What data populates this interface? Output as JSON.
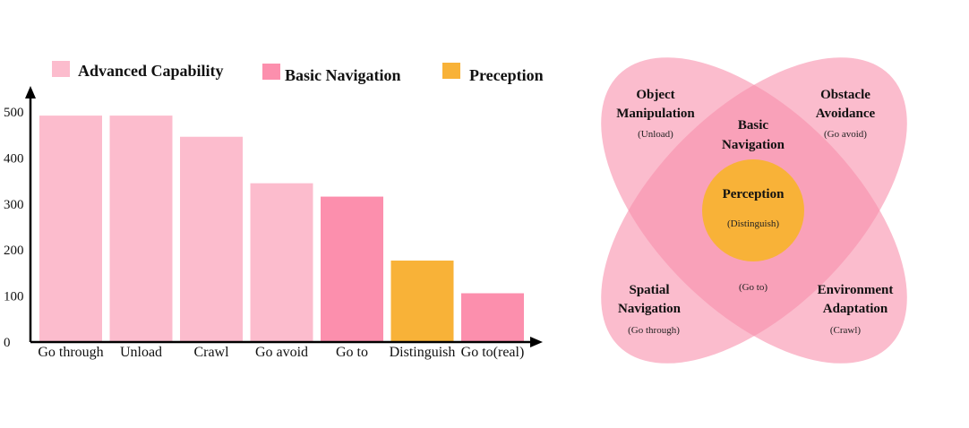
{
  "colors": {
    "advanced": "#fcbccd",
    "basic": "#fc8fad",
    "perception": "#f8b238",
    "petal": "#f890ac",
    "axis": "#000000"
  },
  "legend": [
    {
      "label": "Advanced Capability",
      "color_key": "advanced"
    },
    {
      "label": "Basic Navigation",
      "color_key": "basic"
    },
    {
      "label": "Preception",
      "color_key": "perception"
    }
  ],
  "chart_data": {
    "type": "bar",
    "categories": [
      "Go through",
      "Unload",
      "Crawl",
      "Go avoid",
      "Go to",
      "Distinguish",
      "Go to(real)"
    ],
    "values": [
      492,
      492,
      446,
      345,
      316,
      177,
      106
    ],
    "groups": [
      "Advanced Capability",
      "Advanced Capability",
      "Advanced Capability",
      "Advanced Capability",
      "Basic Navigation",
      "Preception",
      "Basic Navigation"
    ],
    "yticks": [
      0,
      100,
      200,
      300,
      400,
      500
    ],
    "ylim": [
      0,
      500
    ],
    "title": "",
    "xlabel": "",
    "ylabel": "",
    "grid": false,
    "legend_position": "top"
  },
  "venn": {
    "petals": {
      "top_left": {
        "title": [
          "Object",
          "Manipulation"
        ],
        "sub": "(Unload)"
      },
      "top_right": {
        "title": [
          "Obstacle",
          "Avoidance"
        ],
        "sub": "(Go avoid)"
      },
      "bottom_left": {
        "title": [
          "Spatial",
          "Navigation"
        ],
        "sub": "(Go through)"
      },
      "bottom_right": {
        "title": [
          "Environment",
          "Adaptation"
        ],
        "sub": "(Crawl)"
      }
    },
    "center": {
      "title": [
        "Basic",
        "Navigation"
      ],
      "sub": "(Go to)"
    },
    "core": {
      "title": "Perception",
      "sub": "(Distinguish)"
    }
  }
}
